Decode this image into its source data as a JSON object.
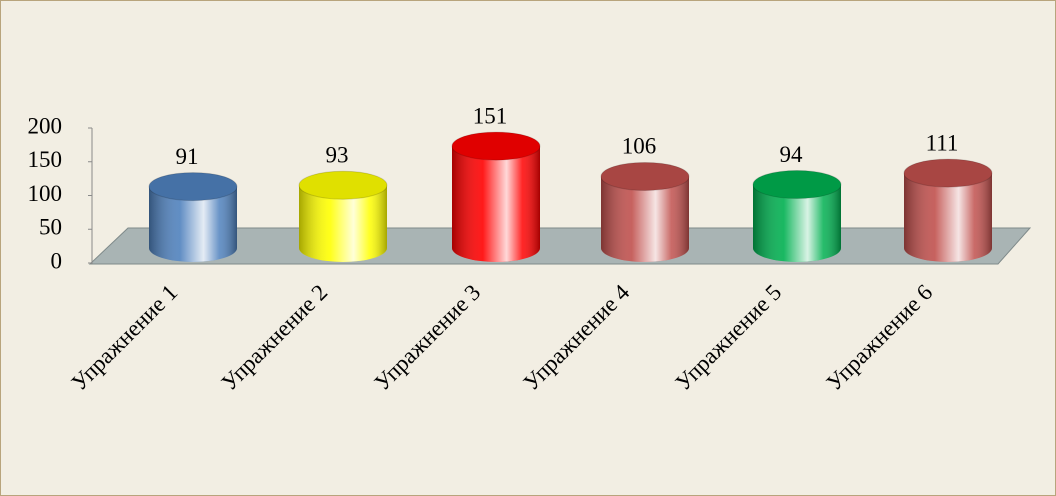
{
  "chart_data": {
    "type": "bar3d",
    "categories": [
      "Упражнение 1",
      "Упражнение 2",
      "Упражнение 3",
      "Упражнение 4",
      "Упражнение 5",
      "Упражнение 6"
    ],
    "values": [
      91,
      93,
      151,
      106,
      94,
      111
    ],
    "colors": [
      "#4f81bd",
      "#ffff00",
      "#ff0000",
      "#c0504d",
      "#00b050",
      "#c0504d"
    ],
    "ylim": [
      0,
      200
    ],
    "yticks": [
      0,
      50,
      100,
      150,
      200
    ]
  }
}
